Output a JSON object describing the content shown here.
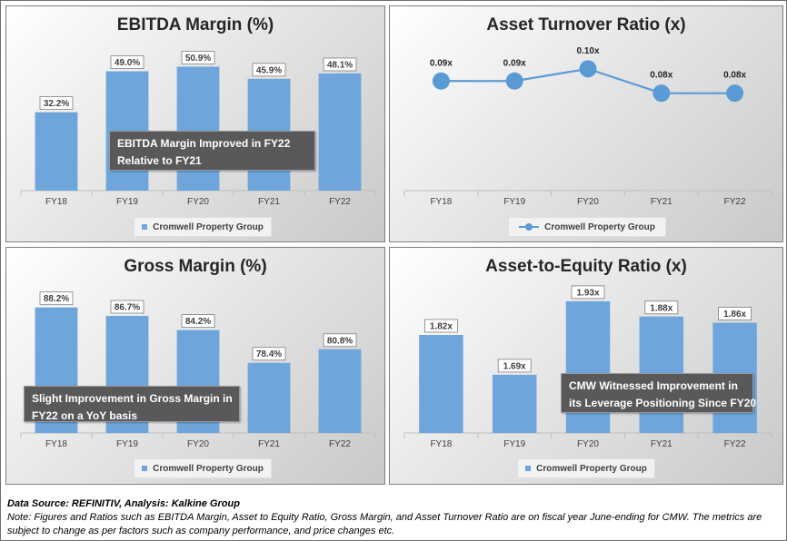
{
  "chart_data": [
    {
      "id": "ebitda",
      "type": "bar",
      "title": "EBITDA Margin (%)",
      "categories": [
        "FY18",
        "FY19",
        "FY20",
        "FY21",
        "FY22"
      ],
      "series": [
        {
          "name": "Cromwell Property Group",
          "values": [
            32.2,
            49.0,
            50.9,
            45.9,
            48.1
          ]
        }
      ],
      "data_labels": [
        "32.2%",
        "49.0%",
        "50.9%",
        "45.9%",
        "48.1%"
      ],
      "ylim": [
        0,
        60
      ],
      "legend": "bottom",
      "grid": false,
      "annotation": [
        "EBITDA Margin Improved in FY22",
        "Relative to FY21"
      ]
    },
    {
      "id": "turnover",
      "type": "line",
      "title": "Asset Turnover Ratio (x)",
      "categories": [
        "FY18",
        "FY19",
        "FY20",
        "FY21",
        "FY22"
      ],
      "series": [
        {
          "name": "Cromwell Property Group",
          "values": [
            0.09,
            0.09,
            0.1,
            0.08,
            0.08
          ]
        }
      ],
      "data_labels": [
        "0.09x",
        "0.09x",
        "0.10x",
        "0.08x",
        "0.08x"
      ],
      "ylim": [
        0,
        0.12
      ],
      "legend": "bottom",
      "grid": false
    },
    {
      "id": "gross",
      "type": "bar",
      "title": "Gross Margin (%)",
      "categories": [
        "FY18",
        "FY19",
        "FY20",
        "FY21",
        "FY22"
      ],
      "series": [
        {
          "name": "Cromwell Property Group",
          "values": [
            88.2,
            86.7,
            84.2,
            78.4,
            80.8
          ]
        }
      ],
      "data_labels": [
        "88.2%",
        "86.7%",
        "84.2%",
        "78.4%",
        "80.8%"
      ],
      "ylim": [
        66,
        92
      ],
      "legend": "bottom",
      "grid": false,
      "annotation": [
        "Slight Improvement in Gross Margin in",
        "FY22 on a YoY basis"
      ]
    },
    {
      "id": "equity",
      "type": "bar",
      "title": "Asset-to-Equity Ratio (x)",
      "categories": [
        "FY18",
        "FY19",
        "FY20",
        "FY21",
        "FY22"
      ],
      "series": [
        {
          "name": "Cromwell Property Group",
          "values": [
            1.82,
            1.69,
            1.93,
            1.88,
            1.86
          ]
        }
      ],
      "data_labels": [
        "1.82x",
        "1.69x",
        "1.93x",
        "1.88x",
        "1.86x"
      ],
      "ylim": [
        1.5,
        1.98
      ],
      "legend": "bottom",
      "grid": false,
      "annotation": [
        "CMW Witnessed Improvement in",
        "its Leverage Positioning Since FY20"
      ]
    }
  ],
  "footer": {
    "source": "Data Source: REFINITIV, Analysis: Kalkine Group",
    "note": "Note: Figures and Ratios such as EBITDA Margin, Asset to Equity Ratio, Gross Margin, and Asset Turnover Ratio are on fiscal year June-ending for CMW. The metrics are subject to change as per factors such as company performance, and price changes etc."
  },
  "colors": {
    "bar": "#6ea6dc",
    "line": "#5b9bd5",
    "callout_bg": "#595959",
    "axis": "#bfbfbf"
  }
}
